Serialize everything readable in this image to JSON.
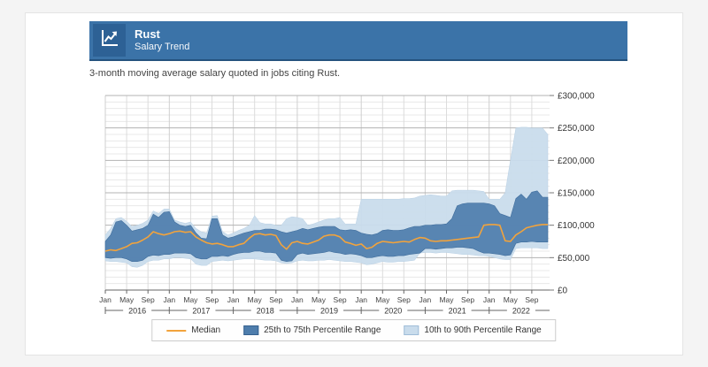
{
  "header": {
    "title": "Rust",
    "subtitle": "Salary Trend",
    "icon": "line-chart-up-icon",
    "background_color": "#3b73a8",
    "icon_box_color": "#2d6195"
  },
  "description": "3-month moving average salary quoted in jobs citing Rust.",
  "legend": {
    "items": [
      {
        "label": "Median",
        "swatch": "line",
        "color": "#f2a33c"
      },
      {
        "label": "25th to 75th Percentile Range",
        "swatch": "box",
        "color": "#4e7dac"
      },
      {
        "label": "10th to 90th Percentile Range",
        "swatch": "box",
        "color": "#c9dcec"
      }
    ]
  },
  "chart_data": {
    "type": "area",
    "title": "Rust Salary Trend",
    "x_start": "2016-01",
    "x_end": "2022-12",
    "interval": "monthly",
    "unit": "GBP thousands",
    "ylim": [
      0,
      300000
    ],
    "grid": true,
    "legend_position": "bottom",
    "y_tick_labels": [
      "£0",
      "£50,000",
      "£100,000",
      "£150,000",
      "£200,000",
      "£250,000",
      "£300,000"
    ],
    "month_tick_labels": [
      "Jan",
      "May",
      "Sep"
    ],
    "years": [
      "2016",
      "2017",
      "2018",
      "2019",
      "2020",
      "2021",
      "2022"
    ],
    "colors": {
      "median": "#f2a33c",
      "p25_p75_band": "#4e7dac",
      "p10_p90_band": "#c9dcec",
      "grid_minor": "#e8e8e8",
      "grid_major": "#b3b3b3",
      "grid_vertical": "#dcdcdc",
      "axis": "#666666",
      "text": "#333333"
    },
    "series": [
      {
        "name": "Median",
        "values": [
          60,
          62,
          61,
          64,
          67,
          72,
          73,
          77,
          82,
          90,
          87,
          85,
          87,
          90,
          91,
          89,
          90,
          82,
          77,
          73,
          71,
          72,
          70,
          67,
          67,
          70,
          72,
          80,
          86,
          87,
          85,
          86,
          84,
          70,
          63,
          73,
          75,
          72,
          71,
          74,
          77,
          83,
          85,
          85,
          82,
          74,
          72,
          69,
          71,
          64,
          66,
          72,
          75,
          74,
          73,
          74,
          75,
          74,
          78,
          81,
          80,
          76,
          75,
          76,
          76,
          77,
          78,
          79,
          80,
          81,
          82,
          100,
          101,
          101,
          100,
          76,
          75,
          85,
          90,
          96,
          98,
          100,
          101,
          101
        ]
      },
      {
        "name": "25th Percentile",
        "values": [
          50,
          49,
          50,
          50,
          48,
          44,
          44,
          46,
          52,
          54,
          53,
          55,
          55,
          57,
          57,
          57,
          56,
          50,
          48,
          48,
          52,
          52,
          53,
          52,
          55,
          57,
          58,
          58,
          60,
          60,
          58,
          58,
          57,
          46,
          44,
          45,
          55,
          57,
          55,
          56,
          57,
          58,
          60,
          58,
          57,
          55,
          56,
          55,
          53,
          50,
          50,
          52,
          53,
          52,
          52,
          53,
          53,
          55,
          56,
          57,
          64,
          64,
          63,
          64,
          65,
          65,
          66,
          66,
          65,
          64,
          60,
          57,
          57,
          56,
          55,
          53,
          54,
          72,
          74,
          74,
          75,
          74,
          74,
          74
        ]
      },
      {
        "name": "75th Percentile",
        "values": [
          75,
          85,
          105,
          107,
          100,
          91,
          93,
          95,
          100,
          117,
          112,
          120,
          121,
          105,
          100,
          98,
          100,
          88,
          80,
          79,
          110,
          110,
          85,
          80,
          82,
          85,
          88,
          90,
          92,
          92,
          94,
          94,
          93,
          90,
          88,
          90,
          92,
          95,
          93,
          95,
          97,
          98,
          98,
          98,
          93,
          92,
          93,
          92,
          88,
          86,
          85,
          87,
          92,
          93,
          92,
          92,
          93,
          96,
          98,
          98,
          100,
          100,
          101,
          101,
          102,
          110,
          130,
          133,
          134,
          134,
          134,
          134,
          133,
          130,
          118,
          115,
          112,
          141,
          148,
          140,
          151,
          153,
          143,
          143
        ]
      },
      {
        "name": "10th Percentile",
        "values": [
          45,
          44,
          44,
          43,
          42,
          36,
          35,
          38,
          44,
          46,
          46,
          48,
          48,
          50,
          50,
          49,
          48,
          40,
          38,
          38,
          44,
          45,
          46,
          45,
          46,
          47,
          48,
          48,
          48,
          47,
          46,
          46,
          45,
          42,
          41,
          42,
          45,
          46,
          45,
          45,
          46,
          46,
          47,
          46,
          45,
          44,
          44,
          43,
          42,
          39,
          40,
          42,
          44,
          43,
          43,
          44,
          44,
          45,
          46,
          57,
          58,
          58,
          57,
          58,
          58,
          57,
          56,
          55,
          55,
          54,
          53,
          53,
          52,
          50,
          48,
          47,
          47,
          64,
          65,
          65,
          65,
          65,
          64,
          64
        ]
      },
      {
        "name": "90th Percentile",
        "values": [
          85,
          95,
          110,
          112,
          106,
          98,
          100,
          103,
          108,
          122,
          118,
          125,
          125,
          108,
          105,
          103,
          105,
          95,
          90,
          88,
          114,
          115,
          90,
          85,
          88,
          92,
          95,
          100,
          115,
          104,
          102,
          102,
          100,
          100,
          110,
          113,
          112,
          110,
          100,
          102,
          105,
          108,
          110,
          110,
          112,
          102,
          102,
          102,
          140,
          140,
          140,
          140,
          140,
          140,
          140,
          140,
          141,
          141,
          142,
          145,
          146,
          147,
          146,
          145,
          145,
          153,
          154,
          154,
          154,
          154,
          153,
          152,
          140,
          140,
          140,
          150,
          200,
          250,
          251,
          251,
          250,
          250,
          250,
          240
        ]
      }
    ]
  }
}
